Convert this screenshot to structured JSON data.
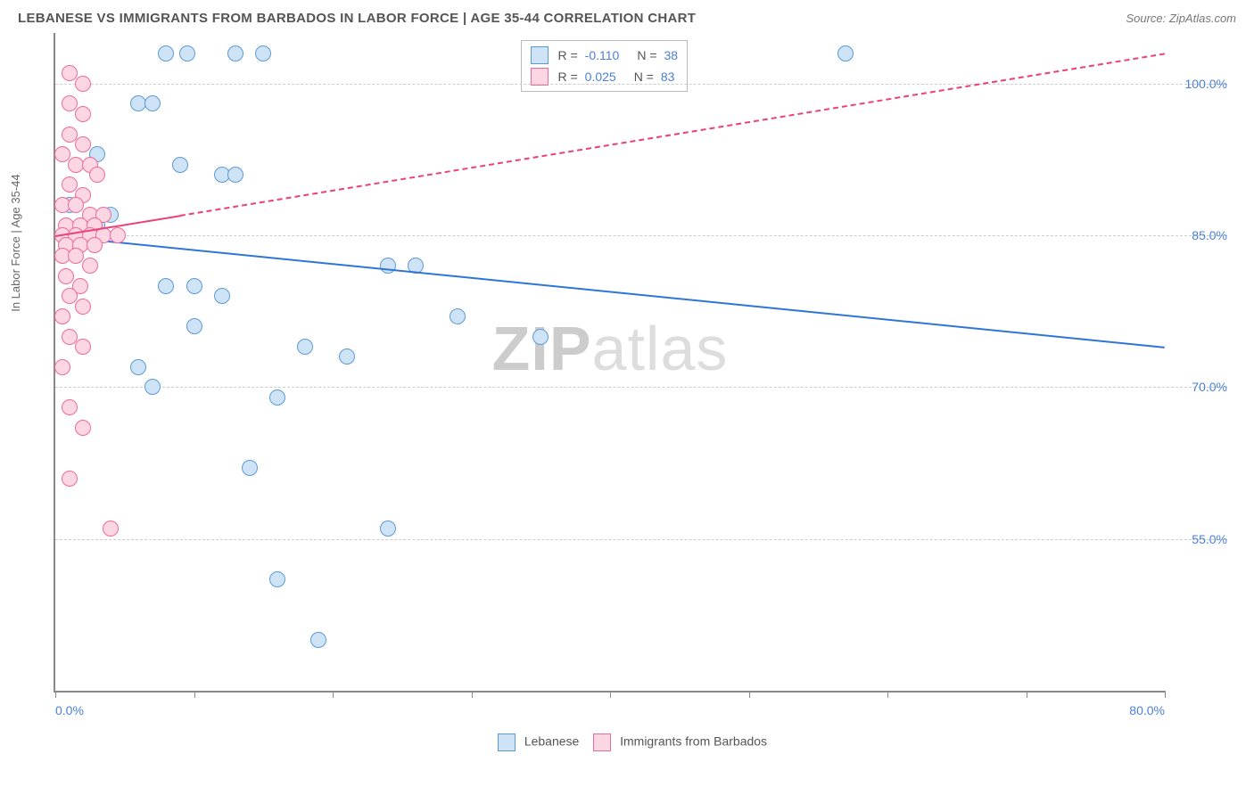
{
  "title": "LEBANESE VS IMMIGRANTS FROM BARBADOS IN LABOR FORCE | AGE 35-44 CORRELATION CHART",
  "source": "Source: ZipAtlas.com",
  "ylabel": "In Labor Force | Age 35-44",
  "watermark_a": "ZIP",
  "watermark_b": "atlas",
  "chart": {
    "type": "scatter",
    "xlim": [
      0,
      80
    ],
    "ylim": [
      40,
      105
    ],
    "xticks": [
      0,
      10,
      20,
      30,
      40,
      50,
      60,
      70,
      80
    ],
    "xtick_labels": {
      "0": "0.0%",
      "80": "80.0%"
    },
    "yticks": [
      55,
      70,
      85,
      100
    ],
    "ytick_labels": [
      "55.0%",
      "70.0%",
      "85.0%",
      "100.0%"
    ],
    "grid_color": "#cccccc",
    "background": "#ffffff",
    "point_radius": 8,
    "series": [
      {
        "name": "Lebanese",
        "fill": "#cfe3f7",
        "stroke": "#5b9bd5",
        "trend_color": "#2e75d6",
        "R": "-0.110",
        "N": "38",
        "trend": {
          "x1": 0,
          "y1": 85,
          "x2": 80,
          "y2": 74,
          "dashed": false
        },
        "points": [
          [
            8,
            103
          ],
          [
            9.5,
            103
          ],
          [
            13,
            103
          ],
          [
            15,
            103
          ],
          [
            57,
            103
          ],
          [
            6,
            98
          ],
          [
            7,
            98
          ],
          [
            3,
            93
          ],
          [
            9,
            92
          ],
          [
            12,
            91
          ],
          [
            13,
            91
          ],
          [
            1,
            88
          ],
          [
            3,
            86
          ],
          [
            4,
            87
          ],
          [
            2,
            85
          ],
          [
            1,
            84
          ],
          [
            8,
            80
          ],
          [
            10,
            80
          ],
          [
            12,
            79
          ],
          [
            24,
            82
          ],
          [
            26,
            82
          ],
          [
            10,
            76
          ],
          [
            6,
            72
          ],
          [
            7,
            70
          ],
          [
            16,
            69
          ],
          [
            18,
            74
          ],
          [
            21,
            73
          ],
          [
            29,
            77
          ],
          [
            35,
            75
          ],
          [
            14,
            62
          ],
          [
            16,
            51
          ],
          [
            19,
            45
          ],
          [
            24,
            56
          ]
        ]
      },
      {
        "name": "Immigrants from Barbados",
        "fill": "#fcd6e3",
        "stroke": "#ec6a9a",
        "trend_color": "#ec407a",
        "R": "0.025",
        "N": "83",
        "trend_solid": {
          "x1": 0,
          "y1": 85,
          "x2": 9,
          "y2": 87,
          "dashed": false
        },
        "trend": {
          "x1": 9,
          "y1": 87,
          "x2": 80,
          "y2": 103,
          "dashed": true
        },
        "points": [
          [
            1,
            101
          ],
          [
            2,
            100
          ],
          [
            1,
            98
          ],
          [
            2,
            97
          ],
          [
            1,
            95
          ],
          [
            2,
            94
          ],
          [
            0.5,
            93
          ],
          [
            1.5,
            92
          ],
          [
            2.5,
            92
          ],
          [
            3,
            91
          ],
          [
            1,
            90
          ],
          [
            2,
            89
          ],
          [
            0.5,
            88
          ],
          [
            1.5,
            88
          ],
          [
            2.5,
            87
          ],
          [
            3.5,
            87
          ],
          [
            0.8,
            86
          ],
          [
            1.8,
            86
          ],
          [
            2.8,
            86
          ],
          [
            0.5,
            85
          ],
          [
            1.5,
            85
          ],
          [
            2.5,
            85
          ],
          [
            3.5,
            85
          ],
          [
            4.5,
            85
          ],
          [
            0.8,
            84
          ],
          [
            1.8,
            84
          ],
          [
            2.8,
            84
          ],
          [
            0.5,
            83
          ],
          [
            1.5,
            83
          ],
          [
            2.5,
            82
          ],
          [
            0.8,
            81
          ],
          [
            1.8,
            80
          ],
          [
            1,
            79
          ],
          [
            2,
            78
          ],
          [
            0.5,
            77
          ],
          [
            1,
            75
          ],
          [
            2,
            74
          ],
          [
            0.5,
            72
          ],
          [
            1,
            68
          ],
          [
            2,
            66
          ],
          [
            1,
            61
          ],
          [
            4,
            56
          ]
        ]
      }
    ]
  },
  "legend": {
    "series_a": "Lebanese",
    "series_b": "Immigrants from Barbados"
  }
}
